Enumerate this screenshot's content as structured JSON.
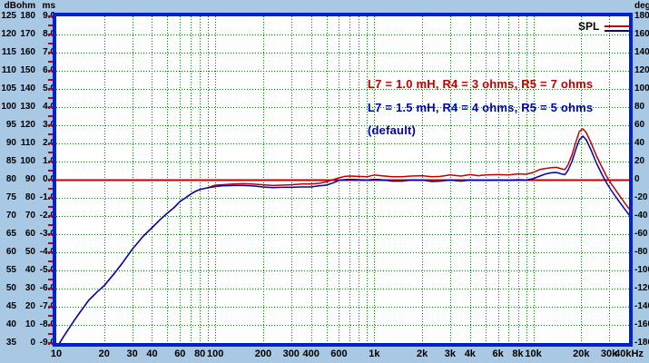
{
  "colors": {
    "background": "#a9c8e3",
    "plot_background": "#ffffff",
    "plot_border": "#0022cc",
    "grid": "#008000",
    "reference_line": "#c00000",
    "series_red": "#c00000",
    "series_blue": "#0000b0",
    "axis_text": "#000000",
    "left_tick": "#c00000",
    "right_tick": "#001890"
  },
  "left_axis": {
    "headers": [
      "dB",
      "ohm",
      "ms"
    ],
    "rows": [
      [
        "125",
        "180",
        "9.0"
      ],
      [
        "120",
        "170",
        "8.0"
      ],
      [
        "115",
        "160",
        "7.0"
      ],
      [
        "110",
        "150",
        "6.0"
      ],
      [
        "105",
        "140",
        "5.0"
      ],
      [
        "100",
        "130",
        "4.0"
      ],
      [
        "95",
        "120",
        "3.0"
      ],
      [
        "90",
        "110",
        "2.0"
      ],
      [
        "85",
        "100",
        "1.0"
      ],
      [
        "80",
        "90",
        "0.0"
      ],
      [
        "75",
        "80",
        "-1.0"
      ],
      [
        "70",
        "70",
        "-2.0"
      ],
      [
        "65",
        "60",
        "-3.0"
      ],
      [
        "60",
        "50",
        "-4.0"
      ],
      [
        "55",
        "40",
        "-5.0"
      ],
      [
        "50",
        "30",
        "-6.0"
      ],
      [
        "45",
        "20",
        "-7.0"
      ],
      [
        "40",
        "10",
        "-8.0"
      ],
      [
        "35",
        "0",
        "-9.0"
      ]
    ]
  },
  "right_axis": {
    "header": "deg",
    "labels": [
      "180",
      "160",
      "140",
      "120",
      "100",
      "80",
      "60",
      "40",
      "20",
      "0",
      "-20",
      "-40",
      "-60",
      "-80",
      "-100",
      "-120",
      "-140",
      "-160",
      "-180"
    ]
  },
  "x_axis": {
    "unit_suffix": "Hz",
    "labels": [
      {
        "text": "10",
        "hz": 10
      },
      {
        "text": "20",
        "hz": 20
      },
      {
        "text": "30",
        "hz": 30
      },
      {
        "text": "40",
        "hz": 40
      },
      {
        "text": "60",
        "hz": 60
      },
      {
        "text": "80",
        "hz": 80
      },
      {
        "text": "100",
        "hz": 100
      },
      {
        "text": "200",
        "hz": 200
      },
      {
        "text": "300",
        "hz": 300
      },
      {
        "text": "400",
        "hz": 400
      },
      {
        "text": "600",
        "hz": 600
      },
      {
        "text": "1k",
        "hz": 1000
      },
      {
        "text": "2k",
        "hz": 2000
      },
      {
        "text": "3k",
        "hz": 3000
      },
      {
        "text": "4k",
        "hz": 4000
      },
      {
        "text": "6k",
        "hz": 6000
      },
      {
        "text": "8k",
        "hz": 8000
      },
      {
        "text": "10k",
        "hz": 10000
      },
      {
        "text": "20k",
        "hz": 20000
      },
      {
        "text": "30k",
        "hz": 30000
      },
      {
        "text": "40kHz",
        "hz": 40000
      }
    ]
  },
  "legend": {
    "spl_label": "SPL",
    "entries": [
      {
        "text": "L7 = 1.0 mH, R4 = 3 ohms, R5 = 7 ohms",
        "color": "#c00000"
      },
      {
        "text": "L7 = 1.5 mH, R4 = 4 ohms, R5 = 5 ohms",
        "color": "#0000b0"
      },
      {
        "text": "(default)",
        "color": "#0000b0"
      }
    ]
  },
  "chart_data": {
    "type": "line",
    "title": "SPL",
    "x_scale": "log",
    "x_range_hz": [
      10,
      40000
    ],
    "y_axis_db": {
      "min": 35,
      "max": 125,
      "step": 5
    },
    "y_axis_ohm": {
      "min": 0,
      "max": 180,
      "step": 10
    },
    "y_axis_ms": {
      "min": -9.0,
      "max": 9.0,
      "step": 1.0
    },
    "y_axis_deg": {
      "min": -180,
      "max": 180,
      "step": 20
    },
    "grid": true,
    "minor_gridlines_hz": [
      20,
      30,
      40,
      50,
      60,
      70,
      80,
      90,
      100,
      200,
      300,
      400,
      500,
      600,
      700,
      800,
      900,
      1000,
      2000,
      3000,
      4000,
      5000,
      6000,
      7000,
      8000,
      9000,
      10000,
      20000,
      30000
    ],
    "reference_line": {
      "value_db": 80,
      "color": "#c00000"
    },
    "series": [
      {
        "name": "L7 = 1.0 mH, R4 = 3 ohms, R5 = 7 ohms",
        "color": "#c00000",
        "points": [
          [
            10.5,
            35
          ],
          [
            11,
            36.5
          ],
          [
            12,
            39
          ],
          [
            13,
            41.3
          ],
          [
            14,
            43.3
          ],
          [
            16,
            46.8
          ],
          [
            18,
            49
          ],
          [
            20,
            50.8
          ],
          [
            23,
            54
          ],
          [
            26,
            57
          ],
          [
            30,
            60.8
          ],
          [
            35,
            64.3
          ],
          [
            40,
            66.8
          ],
          [
            45,
            69
          ],
          [
            50,
            70.8
          ],
          [
            55,
            72.3
          ],
          [
            60,
            74
          ],
          [
            65,
            75
          ],
          [
            70,
            76
          ],
          [
            75,
            76.8
          ],
          [
            80,
            77.3
          ],
          [
            90,
            77.8
          ],
          [
            100,
            78.5
          ],
          [
            110,
            78.6
          ],
          [
            130,
            78.8
          ],
          [
            150,
            78.9
          ],
          [
            170,
            78.8
          ],
          [
            200,
            78.6
          ],
          [
            230,
            78.4
          ],
          [
            260,
            78.5
          ],
          [
            300,
            78.6
          ],
          [
            350,
            78.8
          ],
          [
            400,
            78.8
          ],
          [
            450,
            79
          ],
          [
            500,
            79.4
          ],
          [
            550,
            80
          ],
          [
            600,
            80.5
          ],
          [
            650,
            80.9
          ],
          [
            700,
            81
          ],
          [
            800,
            80.9
          ],
          [
            900,
            80.8
          ],
          [
            1000,
            81.3
          ],
          [
            1100,
            81.1
          ],
          [
            1300,
            80.8
          ],
          [
            1500,
            80.8
          ],
          [
            1700,
            81
          ],
          [
            2000,
            81.1
          ],
          [
            2300,
            80.8
          ],
          [
            2600,
            80.9
          ],
          [
            3000,
            81.3
          ],
          [
            3500,
            81
          ],
          [
            4000,
            81.4
          ],
          [
            4500,
            81.1
          ],
          [
            5000,
            81.3
          ],
          [
            6000,
            81.4
          ],
          [
            7000,
            81.3
          ],
          [
            8000,
            81.6
          ],
          [
            9000,
            81.5
          ],
          [
            10000,
            82
          ],
          [
            11000,
            82.8
          ],
          [
            12000,
            83.1
          ],
          [
            13000,
            83.3
          ],
          [
            14000,
            83.4
          ],
          [
            15000,
            83
          ],
          [
            15800,
            82.8
          ],
          [
            16500,
            84
          ],
          [
            17500,
            86.8
          ],
          [
            18500,
            90.3
          ],
          [
            19500,
            93.3
          ],
          [
            20500,
            94
          ],
          [
            21500,
            93
          ],
          [
            23000,
            90.3
          ],
          [
            25000,
            86.5
          ],
          [
            27000,
            83.5
          ],
          [
            29000,
            80.8
          ],
          [
            31000,
            78.8
          ],
          [
            34000,
            76.3
          ],
          [
            37000,
            74
          ],
          [
            40000,
            72
          ]
        ]
      },
      {
        "name": "L7 = 1.5 mH, R4 = 4 ohms, R5 = 5 ohms (default)",
        "color": "#0000b0",
        "points": [
          [
            10.5,
            35
          ],
          [
            11,
            36.5
          ],
          [
            12,
            39
          ],
          [
            13,
            41.3
          ],
          [
            14,
            43.3
          ],
          [
            16,
            46.8
          ],
          [
            18,
            49
          ],
          [
            20,
            50.8
          ],
          [
            23,
            54
          ],
          [
            26,
            57
          ],
          [
            30,
            60.8
          ],
          [
            35,
            64.3
          ],
          [
            40,
            66.8
          ],
          [
            45,
            69
          ],
          [
            50,
            70.8
          ],
          [
            55,
            72.3
          ],
          [
            60,
            74
          ],
          [
            65,
            75
          ],
          [
            70,
            76
          ],
          [
            75,
            76.8
          ],
          [
            80,
            77.3
          ],
          [
            90,
            77.8
          ],
          [
            100,
            78.1
          ],
          [
            110,
            78.3
          ],
          [
            130,
            78.4
          ],
          [
            150,
            78.4
          ],
          [
            170,
            78.3
          ],
          [
            200,
            78
          ],
          [
            230,
            77.8
          ],
          [
            260,
            77.9
          ],
          [
            300,
            77.9
          ],
          [
            350,
            78
          ],
          [
            400,
            78
          ],
          [
            450,
            78.3
          ],
          [
            500,
            78.5
          ],
          [
            550,
            79.1
          ],
          [
            600,
            79.8
          ],
          [
            650,
            80
          ],
          [
            700,
            80.1
          ],
          [
            800,
            80
          ],
          [
            900,
            79.9
          ],
          [
            1000,
            80.1
          ],
          [
            1100,
            80
          ],
          [
            1300,
            79.6
          ],
          [
            1500,
            79.6
          ],
          [
            1700,
            79.9
          ],
          [
            2000,
            79.9
          ],
          [
            2300,
            79.5
          ],
          [
            2600,
            79.6
          ],
          [
            3000,
            79.9
          ],
          [
            3500,
            79.6
          ],
          [
            4000,
            79.9
          ],
          [
            4500,
            79.8
          ],
          [
            5000,
            79.8
          ],
          [
            6000,
            79.9
          ],
          [
            7000,
            79.8
          ],
          [
            8000,
            80
          ],
          [
            9000,
            79.9
          ],
          [
            10000,
            80.3
          ],
          [
            11000,
            81
          ],
          [
            12000,
            81.6
          ],
          [
            13000,
            81.9
          ],
          [
            14000,
            82
          ],
          [
            15000,
            81.6
          ],
          [
            15800,
            81.4
          ],
          [
            16500,
            82.5
          ],
          [
            17500,
            85
          ],
          [
            18500,
            88.3
          ],
          [
            19500,
            91
          ],
          [
            20500,
            92
          ],
          [
            21500,
            91
          ],
          [
            23000,
            88.3
          ],
          [
            25000,
            84.5
          ],
          [
            27000,
            81.5
          ],
          [
            29000,
            79
          ],
          [
            31000,
            77
          ],
          [
            34000,
            74.5
          ],
          [
            37000,
            72.3
          ],
          [
            40000,
            70.3
          ]
        ]
      }
    ]
  }
}
